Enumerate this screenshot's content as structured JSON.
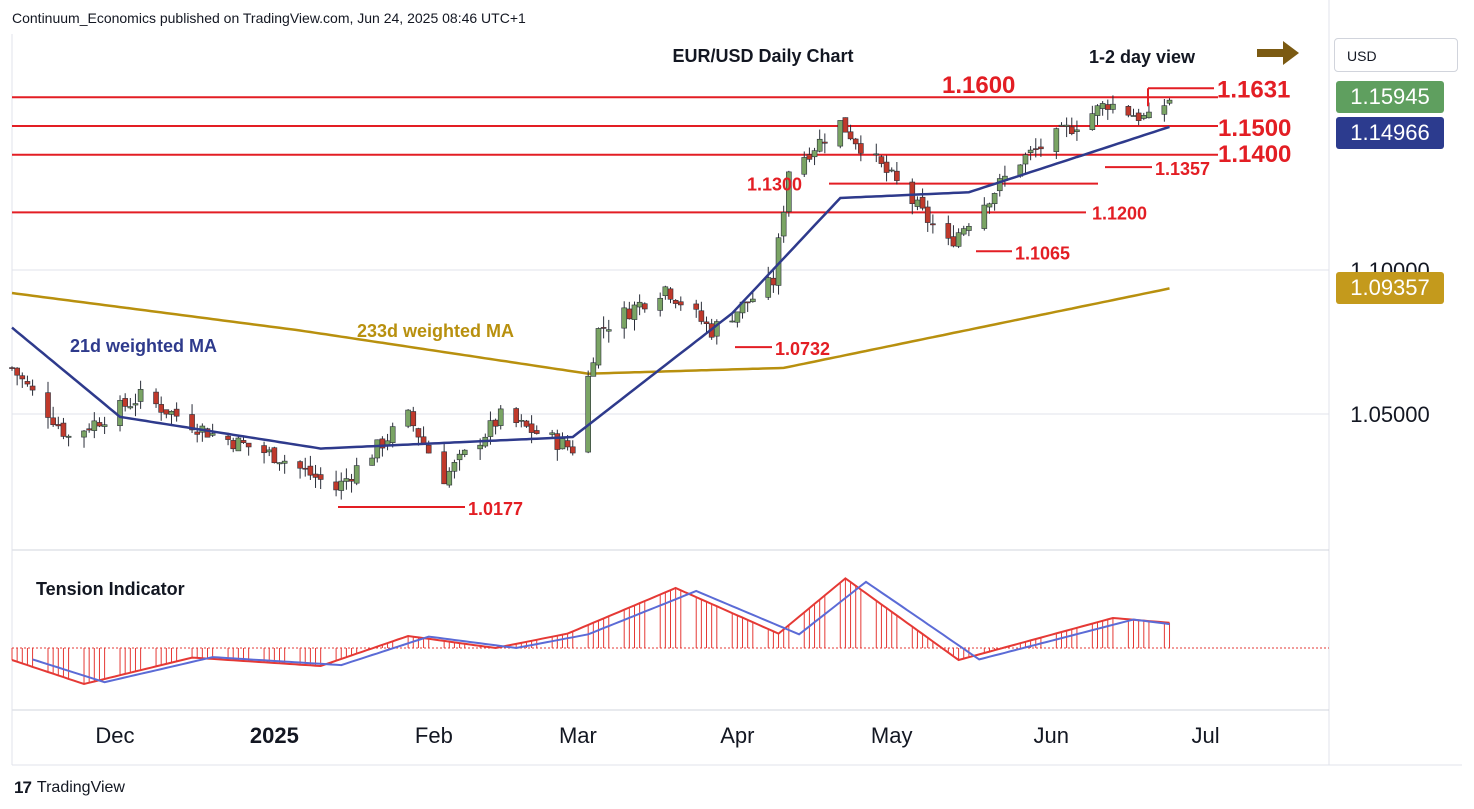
{
  "header": {
    "attribution": "Continuum_Economics published on TradingView.com, Jun 24, 2025 08:46 UTC+1"
  },
  "footer": {
    "logo_glyph": "17",
    "brand": "TradingView"
  },
  "currency": "USD",
  "badges": [
    {
      "value": "1.15945",
      "color": "#5f9f5f"
    },
    {
      "value": "1.14966",
      "color": "#2c3b8e"
    },
    {
      "value": "1.09357",
      "color": "#c49a1c"
    }
  ],
  "colors": {
    "support_resistance": "#e31e24",
    "ma21": "#2e3a8c",
    "ma233": "#b8900e",
    "bull_candle": "#7aa464",
    "bear_candle": "#c0392b",
    "arrow": "#7b5a12",
    "tension_fast": "#e53935",
    "tension_slow": "#5b6bd6"
  },
  "chart_data": {
    "type": "candlestick",
    "title": "EUR/USD Daily Chart",
    "view_label": "1-2 day view",
    "view_direction": "arrow-right",
    "y_ticks": [
      {
        "label": "1.10000",
        "value": 1.1
      },
      {
        "label": "1.05000",
        "value": 1.05
      }
    ],
    "x_ticks": [
      {
        "label": "Dec",
        "bold": false
      },
      {
        "label": "2025",
        "bold": true
      },
      {
        "label": "Feb",
        "bold": false
      },
      {
        "label": "Mar",
        "bold": false
      },
      {
        "label": "Apr",
        "bold": false
      },
      {
        "label": "May",
        "bold": false
      },
      {
        "label": "Jun",
        "bold": false
      },
      {
        "label": "Jul",
        "bold": false
      }
    ],
    "levels": [
      {
        "label": "1.1600",
        "value": 1.16
      },
      {
        "label": "1.1500",
        "value": 1.15
      },
      {
        "label": "1.1400",
        "value": 1.14
      },
      {
        "label": "1.1300",
        "value": 1.13
      },
      {
        "label": "1.1200",
        "value": 1.12
      }
    ],
    "annotations": [
      {
        "label": "1.1631",
        "value": 1.1631
      },
      {
        "label": "1.1357",
        "value": 1.1357
      },
      {
        "label": "1.1065",
        "value": 1.1065
      },
      {
        "label": "1.0732",
        "value": 1.0732
      },
      {
        "label": "1.0177",
        "value": 1.0177
      }
    ],
    "series_labels": {
      "ma21": "21d weighted MA",
      "ma233": "233d weighted MA",
      "indicator": "Tension Indicator"
    },
    "close_key_points": [
      {
        "date": "2024-11-11",
        "close": 1.066
      },
      {
        "date": "2024-11-22",
        "close": 1.042
      },
      {
        "date": "2024-12-06",
        "close": 1.056
      },
      {
        "date": "2024-12-20",
        "close": 1.043
      },
      {
        "date": "2025-01-02",
        "close": 1.035
      },
      {
        "date": "2025-01-13",
        "close": 1.024
      },
      {
        "date": "2025-01-27",
        "close": 1.049
      },
      {
        "date": "2025-02-03",
        "close": 1.028
      },
      {
        "date": "2025-02-14",
        "close": 1.049
      },
      {
        "date": "2025-02-28",
        "close": 1.038
      },
      {
        "date": "2025-03-05",
        "close": 1.079
      },
      {
        "date": "2025-03-18",
        "close": 1.094
      },
      {
        "date": "2025-03-27",
        "close": 1.079
      },
      {
        "date": "2025-04-08",
        "close": 1.096
      },
      {
        "date": "2025-04-11",
        "close": 1.135
      },
      {
        "date": "2025-04-21",
        "close": 1.151
      },
      {
        "date": "2025-05-02",
        "close": 1.13
      },
      {
        "date": "2025-05-12",
        "close": 1.109
      },
      {
        "date": "2025-05-26",
        "close": 1.138
      },
      {
        "date": "2025-06-12",
        "close": 1.158
      },
      {
        "date": "2025-06-20",
        "close": 1.152
      },
      {
        "date": "2025-06-24",
        "close": 1.1594
      }
    ],
    "ma21_key_points": [
      {
        "date": "2024-11-11",
        "value": 1.08
      },
      {
        "date": "2024-12-02",
        "value": 1.049
      },
      {
        "date": "2025-01-10",
        "value": 1.038
      },
      {
        "date": "2025-02-28",
        "value": 1.042
      },
      {
        "date": "2025-03-31",
        "value": 1.085
      },
      {
        "date": "2025-04-21",
        "value": 1.125
      },
      {
        "date": "2025-05-16",
        "value": 1.127
      },
      {
        "date": "2025-06-24",
        "value": 1.1497
      }
    ],
    "ma233_key_points": [
      {
        "date": "2024-11-11",
        "value": 1.092
      },
      {
        "date": "2025-01-06",
        "value": 1.079
      },
      {
        "date": "2025-03-03",
        "value": 1.064
      },
      {
        "date": "2025-04-10",
        "value": 1.066
      },
      {
        "date": "2025-06-24",
        "value": 1.0936
      }
    ],
    "tension_key_points": [
      {
        "date": "2024-11-11",
        "value": -10
      },
      {
        "date": "2024-11-25",
        "value": -30
      },
      {
        "date": "2024-12-16",
        "value": -8
      },
      {
        "date": "2025-01-10",
        "value": -15
      },
      {
        "date": "2025-01-27",
        "value": 10
      },
      {
        "date": "2025-02-13",
        "value": 0
      },
      {
        "date": "2025-02-27",
        "value": 12
      },
      {
        "date": "2025-03-20",
        "value": 50
      },
      {
        "date": "2025-04-09",
        "value": 12
      },
      {
        "date": "2025-04-22",
        "value": 58
      },
      {
        "date": "2025-05-14",
        "value": -10
      },
      {
        "date": "2025-06-13",
        "value": 25
      },
      {
        "date": "2025-06-24",
        "value": 21
      }
    ]
  }
}
